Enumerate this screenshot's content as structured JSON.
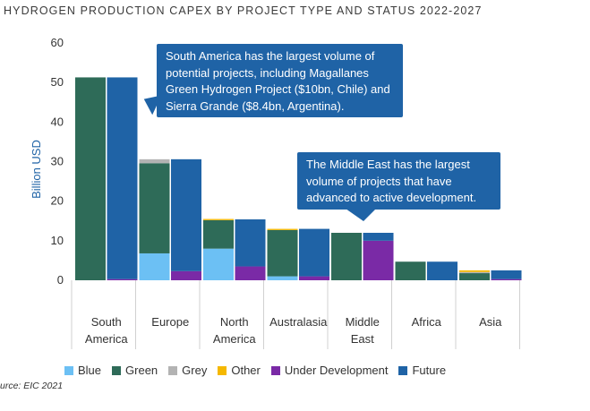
{
  "title": "HYDROGEN PRODUCTION CAPEX BY PROJECT TYPE AND STATUS 2022-2027",
  "source": "urce: EIC 2021",
  "callouts": {
    "south_america": "South America has the largest volume of potential projects, including Magallanes Green Hydrogen Project ($10bn, Chile) and Sierra Grande ($8.4bn, Argentina).",
    "middle_east": "The Middle East has the largest volume of projects that have advanced to active development."
  },
  "colors": {
    "Blue": "#6cc0f4",
    "Green": "#2e6b58",
    "Grey": "#b3b3b3",
    "Other": "#f5b800",
    "Under Development": "#7a2aa6",
    "Future": "#1f63a6",
    "axis_label": "#1f63a6"
  },
  "chart_data": {
    "type": "bar",
    "stacked": true,
    "grouped_pairs": true,
    "categories": [
      "South America",
      "Europe",
      "North America",
      "Australasia",
      "Middle East",
      "Africa",
      "Asia"
    ],
    "category_labels": [
      [
        "South",
        "America"
      ],
      [
        "Europe"
      ],
      [
        "North",
        "America"
      ],
      [
        "Australasia"
      ],
      [
        "Middle",
        "East"
      ],
      [
        "Africa"
      ],
      [
        "Asia"
      ]
    ],
    "ylabel": "Billion USD",
    "ylim": [
      0,
      60
    ],
    "yticks": [
      0,
      10,
      20,
      30,
      40,
      50,
      60
    ],
    "grid": false,
    "legend_position": "bottom",
    "legend": [
      "Blue",
      "Green",
      "Grey",
      "Other",
      "Under Development",
      "Future"
    ],
    "project_type_bars": [
      {
        "Blue": 0,
        "Green": 51.3,
        "Grey": 0,
        "Other": 0
      },
      {
        "Blue": 6.8,
        "Green": 22.8,
        "Grey": 1.0,
        "Other": 0
      },
      {
        "Blue": 8.0,
        "Green": 7.2,
        "Grey": 0,
        "Other": 0.3
      },
      {
        "Blue": 1.0,
        "Green": 11.7,
        "Grey": 0,
        "Other": 0.3
      },
      {
        "Blue": 0,
        "Green": 12.0,
        "Grey": 0,
        "Other": 0
      },
      {
        "Blue": 0,
        "Green": 4.7,
        "Grey": 0,
        "Other": 0
      },
      {
        "Blue": 0,
        "Green": 1.8,
        "Grey": 0.3,
        "Other": 0.4
      }
    ],
    "status_bars": [
      {
        "Under Development": 0.3,
        "Future": 51.0
      },
      {
        "Under Development": 2.3,
        "Future": 28.3
      },
      {
        "Under Development": 3.5,
        "Future": 11.9
      },
      {
        "Under Development": 1.0,
        "Future": 12.0
      },
      {
        "Under Development": 10.0,
        "Future": 2.0
      },
      {
        "Under Development": 0,
        "Future": 4.7
      },
      {
        "Under Development": 0.3,
        "Future": 2.2
      }
    ]
  }
}
